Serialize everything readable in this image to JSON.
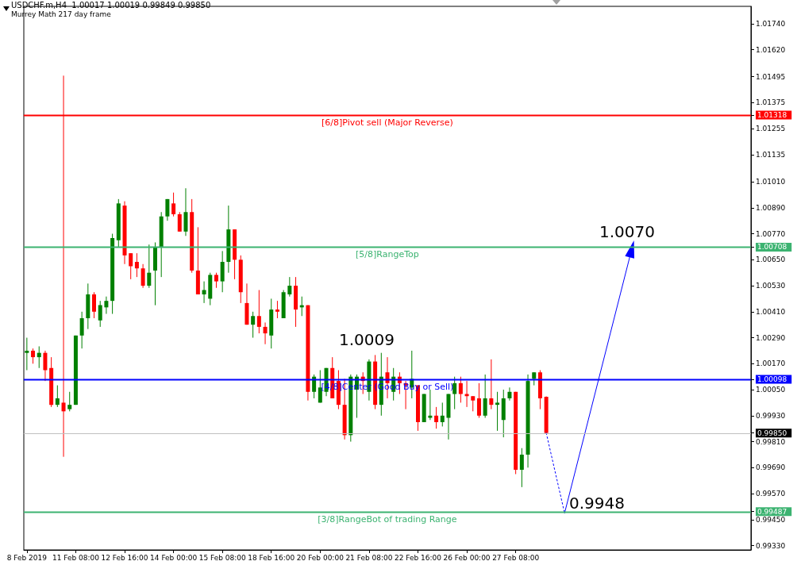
{
  "chart_data": {
    "type": "candlestick",
    "title": "USDCHF.m,H4  1.00017 1.00019 0.99849 0.99850",
    "subtitle": "Murrey Math 217 day frame",
    "categories": [
      "8 Feb 2019",
      null,
      null,
      null,
      null,
      null,
      null,
      null,
      "11 Feb 08:00",
      null,
      null,
      null,
      null,
      null,
      null,
      null,
      "12 Feb 16:00",
      null,
      null,
      null,
      null,
      null,
      null,
      null,
      "14 Feb 00:00",
      null,
      null,
      null,
      null,
      null,
      null,
      null,
      "15 Feb 08:00",
      null,
      null,
      null,
      null,
      null,
      null,
      null,
      "18 Feb 16:00",
      null,
      null,
      null,
      null,
      null,
      null,
      null,
      "20 Feb 00:00",
      null,
      null,
      null,
      null,
      null,
      null,
      null,
      "21 Feb 08:00",
      null,
      null,
      null,
      null,
      null,
      null,
      null,
      "22 Feb 16:00",
      null,
      null,
      null,
      null,
      null,
      null,
      null,
      "26 Feb 00:00",
      null,
      null,
      null,
      null,
      null,
      null,
      null,
      "27 Feb 08:00",
      null,
      null,
      null,
      null,
      null,
      null,
      null,
      null,
      null,
      null,
      null,
      null,
      null,
      null,
      null,
      null,
      null,
      null,
      null,
      null,
      null,
      null,
      null,
      null,
      null,
      null,
      null,
      null,
      null,
      null,
      null,
      null,
      null,
      null,
      null,
      null,
      null,
      null
    ],
    "ohlc": [
      [
        1.0022,
        1.0029,
        1.0014,
        1.0023
      ],
      [
        1.0023,
        1.0024,
        1.0017,
        1.002
      ],
      [
        1.002,
        1.0025,
        1.0015,
        1.0022
      ],
      [
        1.0022,
        1.0023,
        1.0009,
        1.0014
      ],
      [
        1.0015,
        1.002,
        0.9997,
        0.9998
      ],
      [
        0.9998,
        1.0007,
        0.9997,
        1.0001
      ],
      [
        0.9999,
        1.015,
        0.9974,
        0.9995
      ],
      [
        0.9996,
        1.0004,
        0.9995,
        0.9998
      ],
      [
        0.9998,
        1.003,
        0.9998,
        1.003
      ],
      [
        1.003,
        1.0041,
        1.0024,
        1.0038
      ],
      [
        1.0038,
        1.0054,
        1.0033,
        1.0049
      ],
      [
        1.0049,
        1.005,
        1.0038,
        1.0041
      ],
      [
        1.0037,
        1.0046,
        1.0034,
        1.0044
      ],
      [
        1.0043,
        1.0048,
        1.004,
        1.0046
      ],
      [
        1.0046,
        1.0077,
        1.004,
        1.0075
      ],
      [
        1.0074,
        1.0093,
        1.0071,
        1.0091
      ],
      [
        1.009,
        1.0092,
        1.0063,
        1.0067
      ],
      [
        1.0068,
        1.0068,
        1.0056,
        1.0062
      ],
      [
        1.0064,
        1.0068,
        1.0057,
        1.0061
      ],
      [
        1.0061,
        1.0063,
        1.0052,
        1.0053
      ],
      [
        1.0053,
        1.0072,
        1.0052,
        1.0059
      ],
      [
        1.006,
        1.0073,
        1.0044,
        1.0071
      ],
      [
        1.0071,
        1.0087,
        1.0057,
        1.0085
      ],
      [
        1.0085,
        1.0093,
        1.0083,
        1.0093
      ],
      [
        1.0091,
        1.0096,
        1.0085,
        1.0086
      ],
      [
        1.0086,
        1.0087,
        1.0078,
        1.0078
      ],
      [
        1.0078,
        1.0098,
        1.0076,
        1.0087
      ],
      [
        1.0087,
        1.0093,
        1.0059,
        1.006
      ],
      [
        1.006,
        1.008,
        1.0049,
        1.0049
      ],
      [
        1.0049,
        1.0055,
        1.0045,
        1.0051
      ],
      [
        1.0047,
        1.0059,
        1.0044,
        1.0058
      ],
      [
        1.0058,
        1.0059,
        1.0052,
        1.0055
      ],
      [
        1.0055,
        1.0069,
        1.005,
        1.0064
      ],
      [
        1.0064,
        1.009,
        1.0059,
        1.0079
      ],
      [
        1.0079,
        1.0079,
        1.0056,
        1.0065
      ],
      [
        1.0065,
        1.0067,
        1.0045,
        1.005
      ],
      [
        1.0045,
        1.0054,
        1.0035,
        1.0035
      ],
      [
        1.0035,
        1.0041,
        1.0029,
        1.0039
      ],
      [
        1.0039,
        1.0051,
        1.0031,
        1.0034
      ],
      [
        1.0034,
        1.0036,
        1.0026,
        1.0031
      ],
      [
        1.003,
        1.0047,
        1.0024,
        1.0042
      ],
      [
        1.0042,
        1.0046,
        1.0038,
        1.0041
      ],
      [
        1.0038,
        1.0051,
        1.0038,
        1.005
      ],
      [
        1.0049,
        1.0057,
        1.0048,
        1.0053
      ],
      [
        1.0053,
        1.0057,
        1.0034,
        1.0042
      ],
      [
        1.0043,
        1.0048,
        1.0039,
        1.0044
      ],
      [
        1.0044,
        1.0044,
        1.0,
        1.0004
      ],
      [
        1.0004,
        1.0012,
        1.0001,
        1.0011
      ],
      [
        0.9999,
        1.0014,
        0.9999,
        1.0006
      ],
      [
        1.0004,
        1.0015,
        1.0002,
        1.0015
      ],
      [
        1.0015,
        1.002,
        1.0001,
        1.0001
      ],
      [
        1.0009,
        1.0014,
        0.9996,
        0.9998
      ],
      [
        0.9998,
        1.001,
        0.9982,
        0.9984
      ],
      [
        0.9984,
        1.0012,
        0.9981,
        1.0011
      ],
      [
        1.0005,
        1.0012,
        0.9992,
        1.0011
      ],
      [
        1.0011,
        1.0013,
        1.0003,
        1.0009
      ],
      [
        1.0004,
        1.0019,
        1.0,
        1.0018
      ],
      [
        1.0018,
        1.0021,
        0.9996,
        0.9998
      ],
      [
        0.9998,
        1.0022,
        0.9993,
        1.0011
      ],
      [
        1.0013,
        1.002,
        1.0001,
        1.0008
      ],
      [
        1.0004,
        1.0015,
        1.0,
        1.0011
      ],
      [
        1.0011,
        1.0013,
        1.0003,
        1.0008
      ],
      [
        1.0008,
        1.0009,
        0.9996,
        1.0007
      ],
      [
        1.0006,
        1.0023,
        1.0001,
        1.001
      ],
      [
        1.0007,
        1.0007,
        0.9986,
        0.999
      ],
      [
        0.999,
        1.0003,
        0.999,
        1.0003
      ],
      [
        0.9992,
        1.0005,
        0.9991,
        0.9993
      ],
      [
        0.9993,
        0.9997,
        0.9987,
        0.999
      ],
      [
        0.999,
        0.9999,
        0.9988,
        0.9993
      ],
      [
        0.9992,
        1.0003,
        0.9982,
        1.0003
      ],
      [
        1.0003,
        1.0011,
        0.9996,
        1.0008
      ],
      [
        1.0008,
        1.0011,
        0.9999,
        1.0003
      ],
      [
        1.0003,
        1.0009,
        0.9997,
        1.0002
      ],
      [
        1.0002,
        1.0002,
        0.9995,
        1.0
      ],
      [
        1.0001,
        1.0008,
        0.9992,
        0.9993
      ],
      [
        0.9993,
        1.0012,
        0.9992,
        1.0001
      ],
      [
        1.0001,
        1.0019,
        0.9996,
        0.9998
      ],
      [
        0.9998,
        1.0004,
        0.9986,
        0.9999
      ],
      [
        0.9991,
        1.0005,
        0.9983,
        1.0001
      ],
      [
        1.0001,
        1.0006,
        1.0,
        1.0004
      ],
      [
        1.0004,
        1.0004,
        0.9966,
        0.9968
      ],
      [
        0.9968,
        0.9978,
        0.996,
        0.9975
      ],
      [
        0.9975,
        1.0012,
        0.9969,
        1.0009
      ],
      [
        1.001,
        1.0013,
        1.0007,
        1.0013
      ],
      [
        1.0013,
        1.0014,
        0.9996,
        1.0001
      ],
      [
        1.00017,
        1.00019,
        0.99849,
        0.9985
      ],
      null,
      null,
      null,
      null,
      null,
      null,
      null,
      null,
      null,
      null,
      null,
      null,
      null,
      null,
      null,
      null,
      null,
      null,
      null,
      null,
      null,
      null,
      null,
      null,
      null,
      null,
      null,
      null,
      null,
      null,
      null,
      null,
      null
    ],
    "colors": [
      "#008000",
      "#ff0000",
      "#008000",
      "#ff0000",
      "#ff0000",
      "#008000",
      "#ff0000",
      "#008000",
      "#008000",
      "#008000",
      "#008000",
      "#ff0000",
      "#008000",
      "#008000",
      "#008000",
      "#008000",
      "#ff0000",
      "#ff0000",
      "#ff0000",
      "#ff0000",
      "#008000",
      "#008000",
      "#008000",
      "#008000",
      "#ff0000",
      "#ff0000",
      "#008000",
      "#ff0000",
      "#ff0000",
      "#008000",
      "#008000",
      "#ff0000",
      "#008000",
      "#008000",
      "#ff0000",
      "#ff0000",
      "#ff0000",
      "#008000",
      "#ff0000",
      "#ff0000",
      "#008000",
      "#ff0000",
      "#008000",
      "#008000",
      "#ff0000",
      "#008000",
      "#ff0000",
      "#008000",
      "#008000",
      "#008000",
      "#ff0000",
      "#ff0000",
      "#ff0000",
      "#008000",
      "#008000",
      "#ff0000",
      "#008000",
      "#ff0000",
      "#008000",
      "#ff0000",
      "#008000",
      "#ff0000",
      "#ff0000",
      "#008000",
      "#ff0000",
      "#008000",
      "#008000",
      "#ff0000",
      "#008000",
      "#008000",
      "#008000",
      "#ff0000",
      "#ff0000",
      "#ff0000",
      "#ff0000",
      "#008000",
      "#ff0000",
      "#008000",
      "#008000",
      "#008000",
      "#ff0000",
      "#008000",
      "#008000",
      "#008000",
      "#ff0000",
      "#ff0000",
      null,
      null,
      null,
      null,
      null,
      null,
      null,
      null,
      null,
      null,
      null,
      null,
      null,
      null,
      null,
      null,
      null,
      null,
      null,
      null,
      null,
      null,
      null,
      null,
      null,
      null,
      null,
      null,
      null,
      null,
      null,
      null,
      null
    ],
    "series": [
      {
        "type": "line",
        "color": "#0000ff",
        "line_style": "dotted",
        "values": [
          null,
          null,
          null,
          null,
          null,
          null,
          null,
          null,
          null,
          null,
          null,
          null,
          null,
          null,
          null,
          null,
          null,
          null,
          null,
          null,
          null,
          null,
          null,
          null,
          null,
          null,
          null,
          null,
          null,
          null,
          null,
          null,
          null,
          null,
          null,
          null,
          null,
          null,
          null,
          null,
          null,
          null,
          null,
          null,
          null,
          null,
          null,
          null,
          null,
          null,
          null,
          null,
          null,
          null,
          null,
          null,
          null,
          null,
          null,
          null,
          null,
          null,
          null,
          null,
          null,
          null,
          null,
          null,
          null,
          null,
          null,
          null,
          null,
          null,
          null,
          null,
          null,
          null,
          null,
          null,
          null,
          null,
          null,
          null,
          null,
          0.9985,
          null,
          null,
          0.9948,
          null,
          null,
          null,
          null,
          null,
          null,
          null,
          null,
          null,
          null,
          null,
          null,
          null,
          null,
          null,
          null,
          null,
          null,
          null,
          null,
          null,
          null,
          null,
          null,
          null,
          null,
          null,
          null,
          null,
          null
        ]
      },
      {
        "type": "line",
        "color": "#0000ff",
        "line_style": "solid",
        "values": [
          null,
          null,
          null,
          null,
          null,
          null,
          null,
          null,
          null,
          null,
          null,
          null,
          null,
          null,
          null,
          null,
          null,
          null,
          null,
          null,
          null,
          null,
          null,
          null,
          null,
          null,
          null,
          null,
          null,
          null,
          null,
          null,
          null,
          null,
          null,
          null,
          null,
          null,
          null,
          null,
          null,
          null,
          null,
          null,
          null,
          null,
          null,
          null,
          null,
          null,
          null,
          null,
          null,
          null,
          null,
          null,
          null,
          null,
          null,
          null,
          null,
          null,
          null,
          null,
          null,
          null,
          null,
          null,
          null,
          null,
          null,
          null,
          null,
          null,
          null,
          null,
          null,
          null,
          null,
          null,
          null,
          null,
          null,
          null,
          null,
          null,
          null,
          null,
          0.9948,
          null,
          null,
          null,
          null,
          null,
          null,
          null,
          null,
          null,
          null,
          1.007,
          null,
          null,
          null,
          null,
          null,
          null,
          null,
          null,
          null,
          null,
          null,
          null,
          null,
          null,
          null,
          null,
          null,
          null,
          null
        ]
      }
    ],
    "ylim": [
      0.9931,
      1.0182
    ],
    "yticks": [
      {
        "value": 0.9933,
        "label": "0.99330"
      },
      {
        "value": 0.9945,
        "label": "0.99450"
      },
      {
        "value": 0.99487,
        "label": "0.99487"
      },
      {
        "value": 0.9985,
        "label": "0.99850"
      },
      {
        "value": 1.00098,
        "label": "1.00098"
      },
      {
        "value": 1.00708,
        "label": "1.00708"
      },
      {
        "value": 1.01318,
        "label": "1.01318"
      },
      {
        "value": 0.9957,
        "label": "0.99570"
      },
      {
        "value": 0.9969,
        "label": "0.99690"
      },
      {
        "value": 0.9981,
        "label": "0.99810"
      },
      {
        "value": 0.9993,
        "label": "0.99930"
      },
      {
        "value": 1.0005,
        "label": "1.00050"
      },
      {
        "value": 1.0017,
        "label": "1.00170"
      },
      {
        "value": 1.0029,
        "label": "1.00290"
      },
      {
        "value": 1.0041,
        "label": "1.00410"
      },
      {
        "value": 1.0053,
        "label": "1.00530"
      },
      {
        "value": 1.0065,
        "label": "1.00650"
      },
      {
        "value": 1.0077,
        "label": "1.00770"
      },
      {
        "value": 1.0089,
        "label": "1.00890"
      },
      {
        "value": 1.0101,
        "label": "1.01010"
      },
      {
        "value": 1.01135,
        "label": "1.01135"
      },
      {
        "value": 1.01255,
        "label": "1.01255"
      },
      {
        "value": 1.01375,
        "label": "1.01375"
      },
      {
        "value": 1.01495,
        "label": "1.01495"
      },
      {
        "value": 1.0162,
        "label": "1.01620"
      },
      {
        "value": 1.0174,
        "label": "1.01740"
      }
    ],
    "ref_lines": [
      {
        "axis": "y",
        "value": 1.01318,
        "label": "[6/8]Pivot sell (Major Reverse)",
        "color": "#ff0000"
      },
      {
        "axis": "y",
        "value": 1.00708,
        "label": "[5/8]RangeTop",
        "color": "#3cb371"
      },
      {
        "axis": "y",
        "value": 1.00098,
        "label": "[4/8]Center (Good Buy or Sell)",
        "color": "#0000ff"
      },
      {
        "axis": "y",
        "value": 0.9985,
        "label": null,
        "color": "#c0c0c0"
      },
      {
        "axis": "y",
        "value": 0.99487,
        "label": "[3/8]RangeBot of trading Range",
        "color": "#3cb371"
      }
    ],
    "annotations": [
      {
        "text": "1.0070",
        "y": 1.007
      },
      {
        "text": "0.9948",
        "y": 0.9948
      },
      "1.0009"
    ],
    "grid": false
  }
}
